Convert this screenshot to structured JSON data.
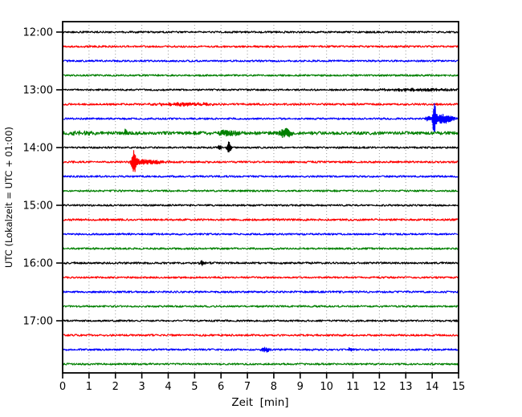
{
  "figure": {
    "background": "#ffffff",
    "grid_color": "#999999",
    "spine_color": "#000000"
  },
  "chart_data": {
    "type": "line",
    "subtype": "helicorder-dayplot",
    "title": "",
    "xlabel": "Zeit  [min]",
    "ylabel": "UTC (Lokalzeit = UTC + 01:00)",
    "xlim": [
      0,
      15
    ],
    "minutes_per_line": 15,
    "grid": "vertical-dotted-every-minute",
    "x_tick_labels": [
      "0",
      "1",
      "2",
      "3",
      "4",
      "5",
      "6",
      "7",
      "8",
      "9",
      "10",
      "11",
      "12",
      "13",
      "14",
      "15"
    ],
    "y_tick_labels": [
      "12:00",
      "13:00",
      "14:00",
      "15:00",
      "16:00",
      "17:00"
    ],
    "trace_colors_cycle": [
      "#000000",
      "#ff0000",
      "#0000ff",
      "#008000"
    ],
    "traces": [
      {
        "start": "12:00",
        "color": "#000000",
        "noise": 1.1,
        "events": []
      },
      {
        "start": "12:15",
        "color": "#ff0000",
        "noise": 1.15,
        "events": []
      },
      {
        "start": "12:30",
        "color": "#0000ff",
        "noise": 1.1,
        "events": []
      },
      {
        "start": "12:45",
        "color": "#008000",
        "noise": 1.1,
        "events": []
      },
      {
        "start": "13:00",
        "color": "#000000",
        "noise": 1.1,
        "events": [
          {
            "t": 13.5,
            "amp": 1.2,
            "w": 1.2
          }
        ]
      },
      {
        "start": "13:15",
        "color": "#ff0000",
        "noise": 1.2,
        "events": [
          {
            "t": 4.6,
            "amp": 1.6,
            "w": 0.8
          }
        ]
      },
      {
        "start": "13:30",
        "color": "#0000ff",
        "noise": 1.1,
        "events": [
          {
            "t": 13.85,
            "amp": 2.5,
            "w": 0.08
          },
          {
            "t": 14.08,
            "amp": 19.0,
            "w": 0.045
          },
          {
            "t": 14.35,
            "amp": 5.0,
            "w": 0.18
          },
          {
            "t": 14.65,
            "amp": 3.0,
            "w": 0.15
          }
        ]
      },
      {
        "start": "13:45",
        "color": "#008000",
        "noise": 2.0,
        "events": [
          {
            "t": 0.7,
            "amp": 1.5,
            "w": 0.35
          },
          {
            "t": 2.38,
            "amp": 4.0,
            "w": 0.035
          },
          {
            "t": 6.3,
            "amp": 3.0,
            "w": 0.3
          },
          {
            "t": 8.45,
            "amp": 5.5,
            "w": 0.14
          }
        ]
      },
      {
        "start": "14:00",
        "color": "#000000",
        "noise": 1.1,
        "events": [
          {
            "t": 5.95,
            "amp": 2.5,
            "w": 0.04
          },
          {
            "t": 6.3,
            "amp": 8.5,
            "w": 0.05
          }
        ]
      },
      {
        "start": "14:15",
        "color": "#ff0000",
        "noise": 1.2,
        "events": [
          {
            "t": 2.7,
            "amp": 13.5,
            "w": 0.06
          },
          {
            "t": 3.0,
            "amp": 3.0,
            "w": 0.25
          },
          {
            "t": 3.55,
            "amp": 1.5,
            "w": 0.3
          }
        ]
      },
      {
        "start": "14:30",
        "color": "#0000ff",
        "noise": 1.1,
        "events": []
      },
      {
        "start": "14:45",
        "color": "#008000",
        "noise": 1.1,
        "events": []
      },
      {
        "start": "15:00",
        "color": "#000000",
        "noise": 1.1,
        "events": []
      },
      {
        "start": "15:15",
        "color": "#ff0000",
        "noise": 1.2,
        "events": []
      },
      {
        "start": "15:30",
        "color": "#0000ff",
        "noise": 1.1,
        "events": []
      },
      {
        "start": "15:45",
        "color": "#008000",
        "noise": 1.1,
        "events": []
      },
      {
        "start": "16:00",
        "color": "#000000",
        "noise": 1.2,
        "events": [
          {
            "t": 5.28,
            "amp": 3.0,
            "w": 0.05
          }
        ]
      },
      {
        "start": "16:15",
        "color": "#ff0000",
        "noise": 1.1,
        "events": []
      },
      {
        "start": "16:30",
        "color": "#0000ff",
        "noise": 1.2,
        "events": []
      },
      {
        "start": "16:45",
        "color": "#008000",
        "noise": 1.1,
        "events": []
      },
      {
        "start": "17:00",
        "color": "#000000",
        "noise": 1.1,
        "events": []
      },
      {
        "start": "17:15",
        "color": "#ff0000",
        "noise": 1.2,
        "events": []
      },
      {
        "start": "17:30",
        "color": "#0000ff",
        "noise": 1.1,
        "events": [
          {
            "t": 7.7,
            "amp": 2.8,
            "w": 0.12
          },
          {
            "t": 10.9,
            "amp": 2.2,
            "w": 0.1
          }
        ]
      },
      {
        "start": "17:45",
        "color": "#008000",
        "noise": 1.1,
        "events": []
      }
    ]
  }
}
